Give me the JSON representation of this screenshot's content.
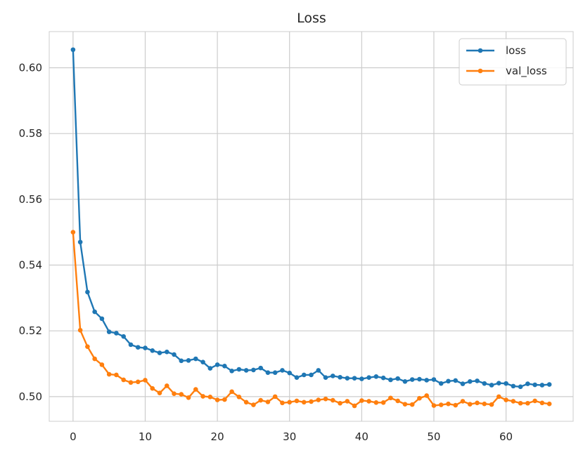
{
  "chart_data": {
    "type": "line",
    "title": "Loss",
    "xlabel": "",
    "ylabel": "",
    "xlim": [
      -3.3,
      69.3
    ],
    "ylim": [
      0.4925,
      0.611
    ],
    "xticks": [
      0,
      10,
      20,
      30,
      40,
      50,
      60
    ],
    "yticks": [
      0.5,
      0.52,
      0.54,
      0.56,
      0.58,
      0.6
    ],
    "xtick_labels": [
      "0",
      "10",
      "20",
      "30",
      "40",
      "50",
      "60"
    ],
    "ytick_labels": [
      "0.50",
      "0.52",
      "0.54",
      "0.56",
      "0.58",
      "0.60"
    ],
    "grid": true,
    "legend_position": "top-right",
    "x": [
      0,
      1,
      2,
      3,
      4,
      5,
      6,
      7,
      8,
      9,
      10,
      11,
      12,
      13,
      14,
      15,
      16,
      17,
      18,
      19,
      20,
      21,
      22,
      23,
      24,
      25,
      26,
      27,
      28,
      29,
      30,
      31,
      32,
      33,
      34,
      35,
      36,
      37,
      38,
      39,
      40,
      41,
      42,
      43,
      44,
      45,
      46,
      47,
      48,
      49,
      50,
      51,
      52,
      53,
      54,
      55,
      56,
      57,
      58,
      59,
      60,
      61,
      62,
      63,
      64,
      65,
      66
    ],
    "series": [
      {
        "name": "loss",
        "color": "#1f77b4",
        "values": [
          0.6055,
          0.547,
          0.5318,
          0.5258,
          0.5237,
          0.5197,
          0.5193,
          0.5183,
          0.5158,
          0.515,
          0.5148,
          0.514,
          0.5133,
          0.5136,
          0.5128,
          0.5109,
          0.511,
          0.5115,
          0.5105,
          0.5086,
          0.5097,
          0.5093,
          0.5078,
          0.5083,
          0.508,
          0.5081,
          0.5087,
          0.5073,
          0.5073,
          0.508,
          0.5072,
          0.5058,
          0.5066,
          0.5066,
          0.508,
          0.5058,
          0.5063,
          0.5059,
          0.5056,
          0.5056,
          0.5054,
          0.5058,
          0.5061,
          0.5057,
          0.5051,
          0.5055,
          0.5046,
          0.5052,
          0.5053,
          0.505,
          0.5052,
          0.504,
          0.5047,
          0.5049,
          0.5039,
          0.5046,
          0.5048,
          0.504,
          0.5035,
          0.5041,
          0.504,
          0.5032,
          0.503,
          0.5039,
          0.5036,
          0.5035,
          0.5037
        ]
      },
      {
        "name": "val_loss",
        "color": "#ff7f0e",
        "values": [
          0.55,
          0.5202,
          0.5152,
          0.5115,
          0.5097,
          0.5068,
          0.5066,
          0.5051,
          0.5043,
          0.5045,
          0.505,
          0.5025,
          0.5011,
          0.5033,
          0.5009,
          0.5007,
          0.4997,
          0.5022,
          0.5001,
          0.4999,
          0.499,
          0.4991,
          0.5015,
          0.4999,
          0.4983,
          0.4975,
          0.4989,
          0.4984,
          0.5,
          0.4981,
          0.4983,
          0.4987,
          0.4983,
          0.4985,
          0.499,
          0.4993,
          0.4989,
          0.498,
          0.4986,
          0.4972,
          0.4988,
          0.4986,
          0.4982,
          0.4982,
          0.4996,
          0.4987,
          0.4977,
          0.4976,
          0.4995,
          0.5003,
          0.4973,
          0.4975,
          0.4978,
          0.4974,
          0.4986,
          0.4977,
          0.4981,
          0.4978,
          0.4976,
          0.5,
          0.499,
          0.4986,
          0.498,
          0.498,
          0.4987,
          0.4981,
          0.4978
        ]
      }
    ]
  }
}
